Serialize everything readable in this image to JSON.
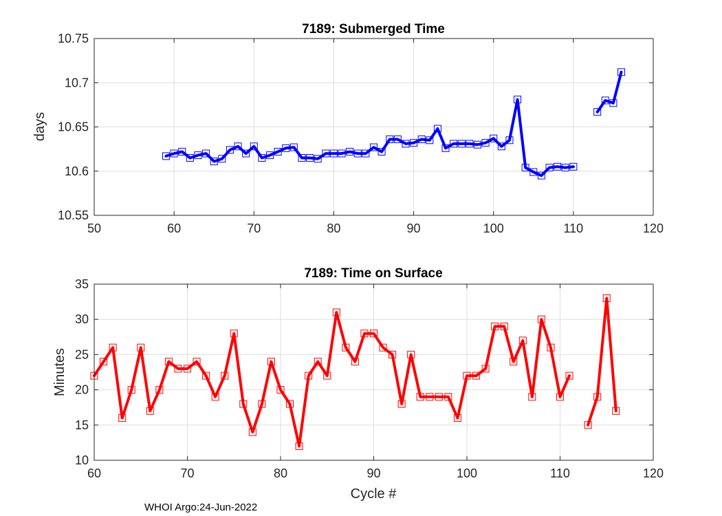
{
  "chart_data": [
    {
      "type": "line",
      "title": "7189: Submerged Time",
      "xlabel": "",
      "ylabel": "days",
      "xlim": [
        50,
        120
      ],
      "ylim": [
        10.55,
        10.75
      ],
      "xticks": [
        50,
        60,
        70,
        80,
        90,
        100,
        110,
        120
      ],
      "yticks": [
        10.55,
        10.6,
        10.65,
        10.7,
        10.75
      ],
      "ytick_labels": [
        "10.55",
        "10.6",
        "10.65",
        "10.7",
        "10.75"
      ],
      "grid": true,
      "color": "#0000ff",
      "series": [
        {
          "name": "Submerged Time",
          "x": [
            59,
            60,
            61,
            62,
            63,
            64,
            65,
            66,
            67,
            68,
            69,
            70,
            71,
            72,
            73,
            74,
            75,
            76,
            77,
            78,
            79,
            80,
            81,
            82,
            83,
            84,
            85,
            86,
            87,
            88,
            89,
            90,
            91,
            92,
            93,
            94,
            95,
            96,
            97,
            98,
            99,
            100,
            101,
            102,
            103,
            104,
            105,
            106,
            107,
            108,
            109,
            110,
            113,
            114,
            115,
            116
          ],
          "y": [
            10.617,
            10.62,
            10.622,
            10.615,
            10.618,
            10.62,
            10.611,
            10.614,
            10.624,
            10.628,
            10.62,
            10.628,
            10.615,
            10.618,
            10.622,
            10.626,
            10.627,
            10.615,
            10.615,
            10.614,
            10.62,
            10.62,
            10.62,
            10.622,
            10.62,
            10.62,
            10.627,
            10.622,
            10.636,
            10.636,
            10.631,
            10.632,
            10.636,
            10.635,
            10.648,
            10.626,
            10.631,
            10.631,
            10.631,
            10.63,
            10.632,
            10.637,
            10.628,
            10.635,
            10.681,
            10.604,
            10.599,
            10.595,
            10.604,
            10.605,
            10.604,
            10.605,
            10.667,
            10.68,
            10.677,
            10.712
          ]
        }
      ]
    },
    {
      "type": "line",
      "title": "7189: Time on Surface",
      "xlabel": "Cycle #",
      "ylabel": "Minutes",
      "xlim": [
        60,
        120
      ],
      "ylim": [
        10,
        35
      ],
      "xticks": [
        60,
        70,
        80,
        90,
        100,
        110,
        120
      ],
      "yticks": [
        10,
        15,
        20,
        25,
        30,
        35
      ],
      "ytick_labels": [
        "10",
        "15",
        "20",
        "25",
        "30",
        "35"
      ],
      "grid": true,
      "color": "#ff0000",
      "series": [
        {
          "name": "Time on Surface",
          "x": [
            60,
            61,
            62,
            63,
            64,
            65,
            66,
            67,
            68,
            69,
            70,
            71,
            72,
            73,
            74,
            75,
            76,
            77,
            78,
            79,
            80,
            81,
            82,
            83,
            84,
            85,
            86,
            87,
            88,
            89,
            90,
            91,
            92,
            93,
            94,
            95,
            96,
            97,
            98,
            99,
            100,
            101,
            102,
            103,
            104,
            105,
            106,
            107,
            108,
            109,
            110,
            111,
            113,
            114,
            115,
            116
          ],
          "y": [
            22,
            24,
            26,
            16,
            20,
            26,
            17,
            20,
            24,
            23,
            23,
            24,
            22,
            19,
            22,
            28,
            18,
            14,
            18,
            24,
            20,
            18,
            12,
            22,
            24,
            22,
            31,
            26,
            24,
            28,
            28,
            26,
            25,
            18,
            25,
            19,
            19,
            19,
            19,
            16,
            22,
            22,
            23,
            29,
            29,
            24,
            27,
            19,
            30,
            26,
            19,
            22,
            15,
            19,
            33,
            17
          ]
        }
      ]
    }
  ],
  "footer": "WHOI Argo:24-Jun-2022"
}
